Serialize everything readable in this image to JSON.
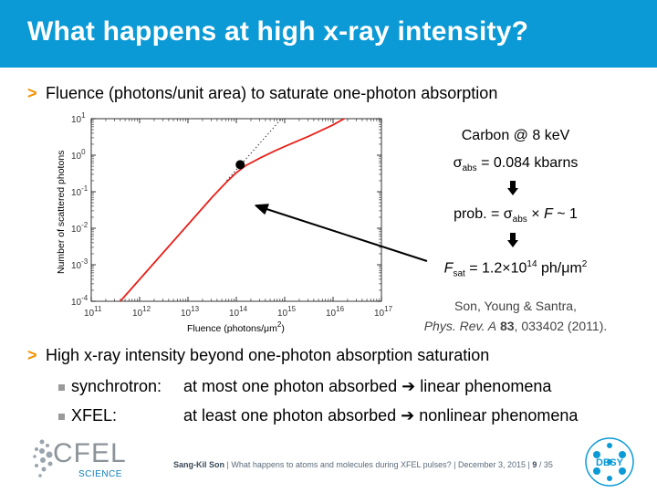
{
  "title": "What happens at high x-ray intensity?",
  "bullet1": {
    "marker": ">",
    "text": "Fluence (photons/unit area) to saturate one-photon absorption"
  },
  "chart_data": {
    "type": "line",
    "xlabel": "Fluence (photons/μm",
    "xlabel_sup": "2",
    "xlabel_end": ")",
    "ylabel": "Number of scattered photons",
    "x_log": true,
    "y_log": true,
    "xlim_exp": [
      11,
      17
    ],
    "ylim_exp": [
      -4,
      1
    ],
    "x_ticks": [
      {
        "base": "10",
        "exp": "11"
      },
      {
        "base": "10",
        "exp": "12"
      },
      {
        "base": "10",
        "exp": "13"
      },
      {
        "base": "10",
        "exp": "14"
      },
      {
        "base": "10",
        "exp": "15"
      },
      {
        "base": "10",
        "exp": "16"
      },
      {
        "base": "10",
        "exp": "17"
      }
    ],
    "y_ticks": [
      {
        "base": "10",
        "exp": "1"
      },
      {
        "base": "10",
        "exp": "0"
      },
      {
        "base": "10",
        "exp": "-1"
      },
      {
        "base": "10",
        "exp": "-2"
      },
      {
        "base": "10",
        "exp": "-3"
      },
      {
        "base": "10",
        "exp": "-4"
      }
    ],
    "series": [
      {
        "style": "solid",
        "color": "#e8201a",
        "log_x": [
          11.6,
          12,
          12.5,
          13,
          13.5,
          13.8,
          14,
          14.2,
          14.5,
          14.8,
          15,
          15.5,
          16,
          16.5,
          17
        ],
        "log_y": [
          -4,
          -3.4,
          -2.65,
          -1.9,
          -1.15,
          -0.73,
          -0.48,
          -0.28,
          -0.07,
          0.12,
          0.24,
          0.52,
          0.83,
          1.2,
          1.6
        ]
      },
      {
        "style": "dotted",
        "color": "#333333",
        "log_x": [
          13.8,
          17
        ],
        "log_y": [
          -0.7,
          4.1
        ]
      }
    ],
    "marker_point": {
      "log_x": 14.08,
      "log_y": -0.26
    }
  },
  "right_panel": {
    "line1": "Carbon @ 8 keV",
    "sigma_sym": "σ",
    "sigma_sub": "abs",
    "sigma_val": " = 0.084 kbarns",
    "prob_pre": "prob. = ",
    "prob_sub": "abs",
    "prob_mid": " × ",
    "prob_F": "F",
    "prob_end": " ~ 1",
    "fsat_F": "F",
    "fsat_sub": "sat",
    "fsat_val": " = 1.2×10",
    "fsat_exp": "14",
    "fsat_unit": " ph/μm",
    "fsat_unit_exp": "2",
    "cite1": "Son, Young & Santra,",
    "cite2_j": "Phys. Rev. A",
    "cite2_v": " 83",
    "cite2_rest": ", 033402 (2011)."
  },
  "bullet2": {
    "marker": ">",
    "text": "High x-ray intensity beyond one-photon absorption saturation"
  },
  "subbullets": [
    {
      "label": "synchrotron:",
      "text": "at most one photon absorbed ➔ linear phenomena"
    },
    {
      "label": "XFEL:",
      "text": "at least one photon absorbed ➔ nonlinear phenomena"
    }
  ],
  "footer": {
    "author": "Sang-Kil Son",
    "talk": "  |  What happens to atoms and molecules during XFEL pulses?  |  December 3, 2015  |  ",
    "page": "9",
    "total": "  / 35"
  },
  "logos": {
    "cfel": "CFEL",
    "science": "SCIENCE",
    "desy": "DESY"
  },
  "colors": {
    "accent": "#0b9ad6",
    "chevron": "#f39200",
    "curve": "#e8201a"
  }
}
